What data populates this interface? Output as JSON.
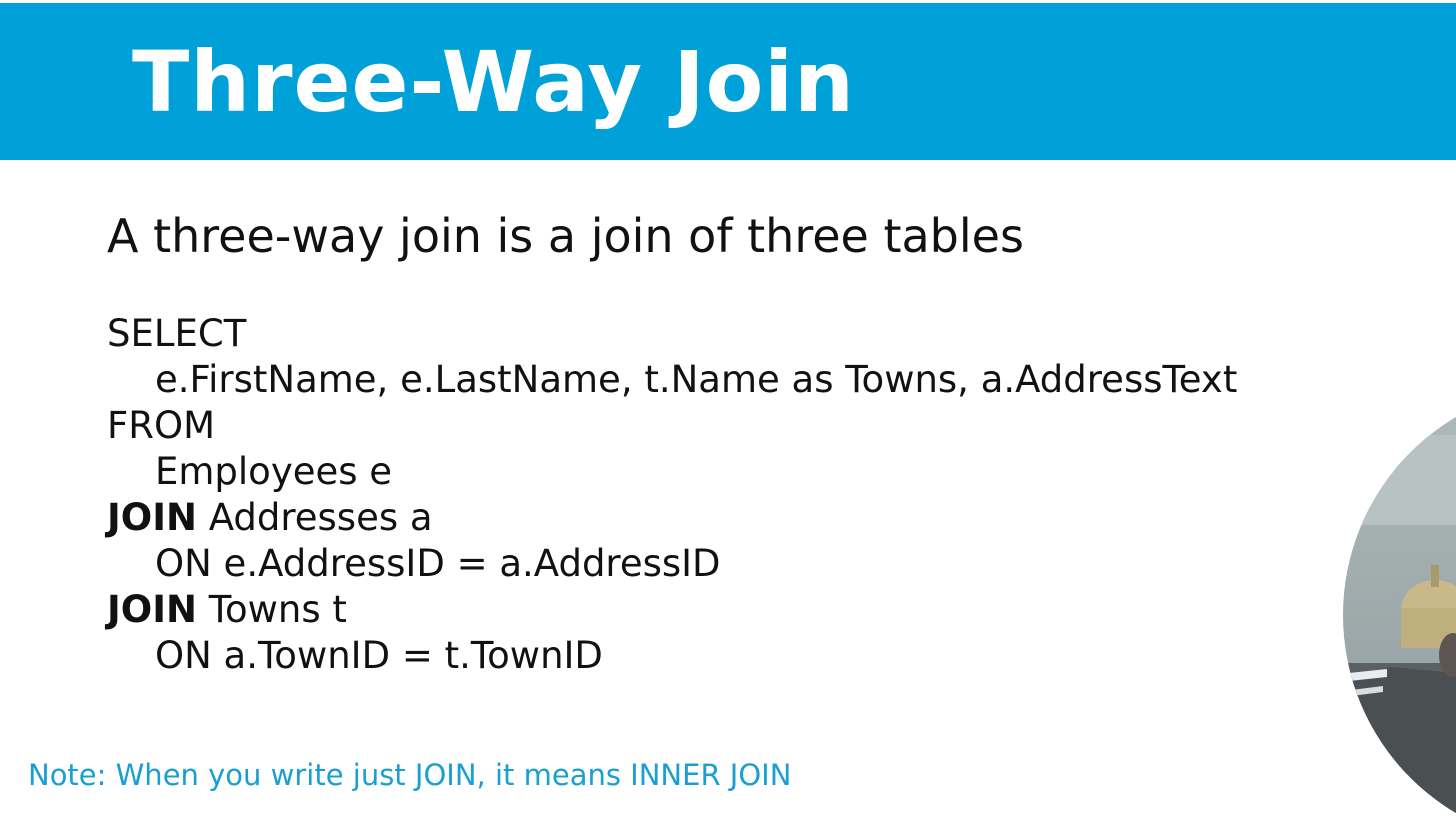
{
  "slide": {
    "title": "Three-Way Join",
    "subtitle": "A three-way join is a join of three tables",
    "code": {
      "select_kw": "SELECT",
      "columns": "e.FirstName, e.LastName, t.Name as Towns, a.AddressText",
      "from_kw": "FROM",
      "from_table": "Employees e",
      "join1_kw": "JOIN",
      "join1_table": " Addresses a",
      "join1_on": "ON e.AddressID = a.AddressID",
      "join2_kw": "JOIN",
      "join2_table": " Towns t",
      "join2_on": "ON a.TownID  = t.TownID"
    },
    "note": "Note: When you write just JOIN, it means INNER JOIN"
  },
  "presenter": {
    "icon": "presenter-webcam-thumbnail"
  },
  "colors": {
    "title_bar": "#00a1d9",
    "title_text": "#ffffff",
    "body_text": "#111111",
    "note_text": "#1a9fd3"
  }
}
